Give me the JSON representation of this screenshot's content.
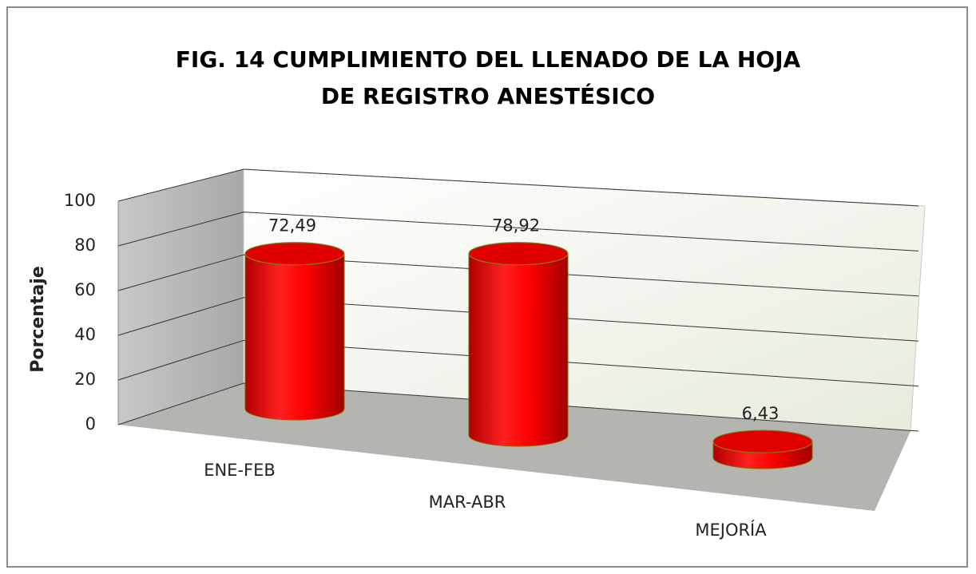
{
  "chart_data": {
    "type": "bar",
    "title": "FIG. 14 CUMPLIMIENTO DEL LLENADO DE LA HOJA DE REGISTRO ANESTÉSICO",
    "ylabel": "Porcentaje",
    "categories": [
      "ENE-FEB",
      "MAR-ABR",
      "MEJORÍA"
    ],
    "values": [
      72.49,
      78.92,
      6.43
    ],
    "value_labels": [
      "72,49",
      "78,92",
      "6,43"
    ],
    "color": "#ff0000",
    "ylim": [
      0,
      100
    ],
    "yticks": [
      0,
      20,
      40,
      60,
      80,
      100
    ],
    "grid": true
  }
}
